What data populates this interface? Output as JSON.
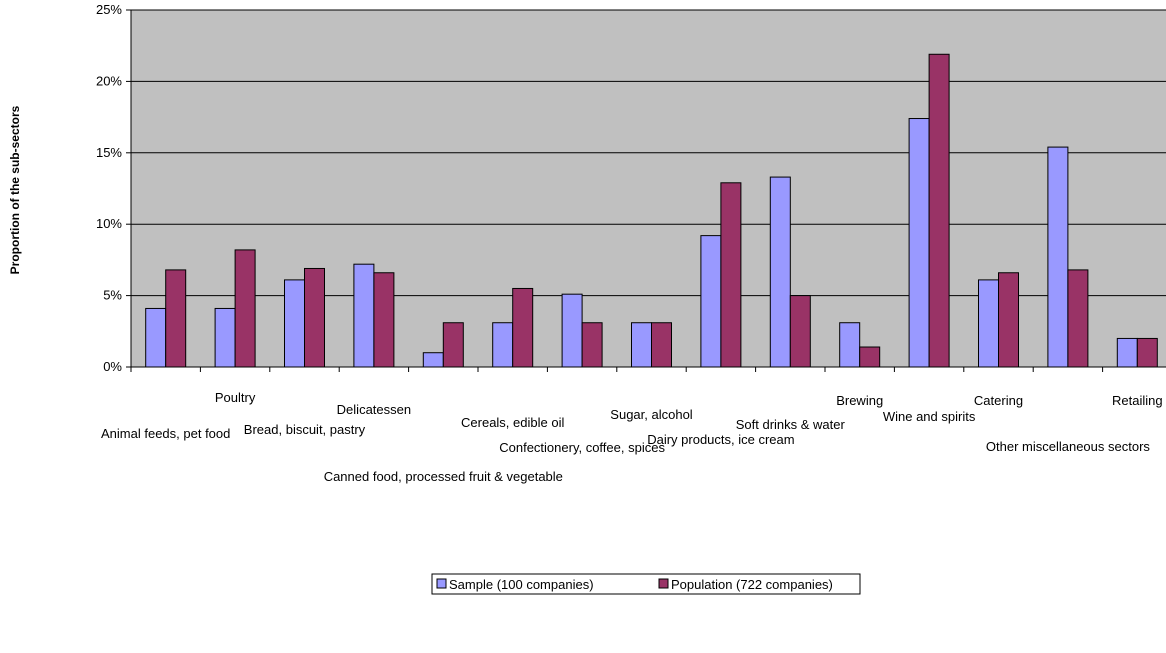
{
  "chart_data": {
    "type": "bar",
    "title": "",
    "xlabel": "",
    "ylabel": "Proportion of the sub-sectors",
    "ylim": [
      0,
      25
    ],
    "yticks": [
      "0%",
      "5%",
      "10%",
      "15%",
      "20%",
      "25%"
    ],
    "grid": true,
    "legend_position": "bottom",
    "plot_background": "#c0c0c0",
    "categories": [
      "Animal feeds, pet food",
      "Poultry",
      "Bread, biscuit, pastry",
      "Delicatessen",
      "Canned food, processed fruit & vegetable",
      "Cereals, edible oil",
      "Confectionery, coffee, spices",
      "Sugar, alcohol",
      "Dairy products, ice cream",
      "Soft drinks & water",
      "Brewing",
      "Wine and spirits",
      "Catering",
      "Other miscellaneous sectors",
      "Retailing"
    ],
    "series": [
      {
        "name": "Sample (100 companies)",
        "color": "#9999ff",
        "values": [
          4.1,
          4.1,
          6.1,
          7.2,
          1.0,
          3.1,
          5.1,
          3.1,
          9.2,
          13.3,
          3.1,
          17.4,
          6.1,
          15.4,
          2.0
        ]
      },
      {
        "name": "Population (722 companies)",
        "color": "#993366",
        "values": [
          6.8,
          8.2,
          6.9,
          6.6,
          3.1,
          5.5,
          3.1,
          3.1,
          12.9,
          5.0,
          1.4,
          21.9,
          6.6,
          6.8,
          2.0
        ]
      }
    ]
  }
}
